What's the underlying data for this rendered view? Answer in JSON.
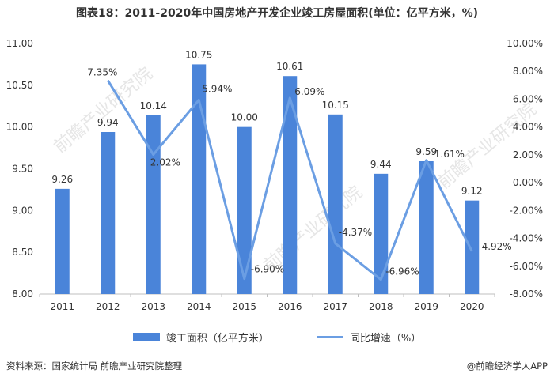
{
  "chart_data": {
    "type": "bar+line",
    "title": "图表18：2011-2020年中国房地产开发企业竣工房屋面积(单位：亿平方米，%)",
    "categories": [
      "2011",
      "2012",
      "2013",
      "2014",
      "2015",
      "2016",
      "2017",
      "2018",
      "2019",
      "2020"
    ],
    "series": [
      {
        "name": "竣工面积（亿平方米）",
        "kind": "bar",
        "axis": "left",
        "color": "#4a84d9",
        "values": [
          9.26,
          9.94,
          10.14,
          10.75,
          10.0,
          10.61,
          10.15,
          9.44,
          9.59,
          9.12
        ],
        "labels": [
          "9.26",
          "9.94",
          "10.14",
          "10.75",
          "10.00",
          "10.61",
          "10.15",
          "9.44",
          "9.59",
          "9.12"
        ]
      },
      {
        "name": "同比增速（%）",
        "kind": "line",
        "axis": "right",
        "color": "#6b9ee3",
        "values": [
          null,
          7.35,
          2.02,
          5.94,
          -6.9,
          6.09,
          -4.37,
          -6.96,
          1.61,
          -4.92
        ],
        "labels": [
          "",
          "7.35%",
          "2.02%",
          "5.94%",
          "-6.90%",
          "6.09%",
          "-4.37%",
          "-6.96%",
          "1.61%",
          "-4.92%"
        ]
      }
    ],
    "left_axis": {
      "ylim": [
        8.0,
        11.0
      ],
      "ticks": [
        8.0,
        8.5,
        9.0,
        9.5,
        10.0,
        10.5,
        11.0
      ],
      "tick_labels": [
        "8.00",
        "8.50",
        "9.00",
        "9.50",
        "10.00",
        "10.50",
        "11.00"
      ]
    },
    "right_axis": {
      "ylim": [
        -8,
        10
      ],
      "ticks": [
        -8,
        -6,
        -4,
        -2,
        0,
        2,
        4,
        6,
        8,
        10
      ],
      "tick_labels": [
        "-8.00%",
        "-6.00%",
        "-4.00%",
        "-2.00%",
        "0.00%",
        "2.00%",
        "4.00%",
        "6.00%",
        "8.00%",
        "10.00%"
      ]
    },
    "grid": false,
    "legend_position": "bottom"
  },
  "legend": {
    "bar_label": "竣工面积（亿平方米）",
    "line_label": "同比增速（%）"
  },
  "footer": {
    "source": "资料来源：国家统计局 前瞻产业研究院整理",
    "brand": "@前瞻经济学人APP"
  },
  "watermark": {
    "text": "前瞻产业研究院"
  }
}
